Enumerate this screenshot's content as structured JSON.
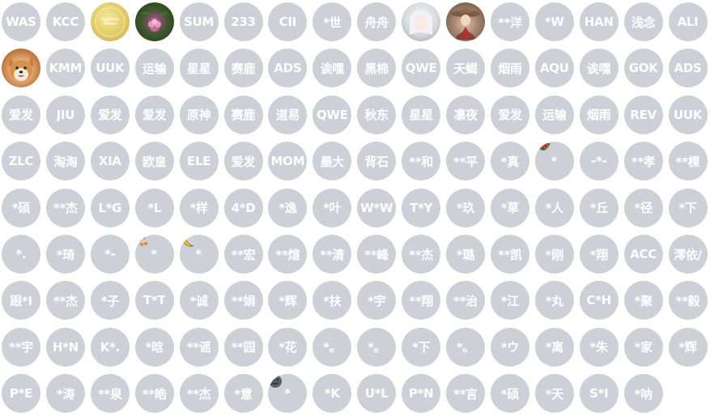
{
  "avatar_colors": {
    "placeholder_bg": "#cdd0d6",
    "text": "#ffffff"
  },
  "rows": [
    [
      {
        "label": "WAS"
      },
      {
        "label": "KCC"
      },
      {
        "label": "",
        "image": "gold-coin-avatar",
        "img_text": "G..."
      },
      {
        "label": "",
        "image": "pink-flower-avatar"
      },
      {
        "label": "SUM"
      },
      {
        "label": "233"
      },
      {
        "label": "CII"
      },
      {
        "label": "*世"
      },
      {
        "label": "舟舟"
      },
      {
        "label": "",
        "image": "anime-character-avatar"
      },
      {
        "label": "",
        "image": "cowboy-character-avatar"
      },
      {
        "label": "**洋"
      },
      {
        "label": "*W"
      },
      {
        "label": "HAN"
      },
      {
        "label": "浅念"
      },
      {
        "label": "ALI"
      }
    ],
    [
      {
        "label": "",
        "image": "shiba-dog-avatar"
      },
      {
        "label": "KMM"
      },
      {
        "label": "UUK"
      },
      {
        "label": "运输"
      },
      {
        "label": "星星"
      },
      {
        "label": "赛鹿"
      },
      {
        "label": "ADS"
      },
      {
        "label": "诶嘿"
      },
      {
        "label": "黑棉"
      },
      {
        "label": "QWE"
      },
      {
        "label": "天蝎"
      },
      {
        "label": "烟雨"
      },
      {
        "label": "AQU"
      },
      {
        "label": "诶嘿"
      },
      {
        "label": "GOK"
      },
      {
        "label": "ADS"
      }
    ],
    [
      {
        "label": "爱发"
      },
      {
        "label": "JIU"
      },
      {
        "label": "爱发"
      },
      {
        "label": "爱发"
      },
      {
        "label": "原神"
      },
      {
        "label": "赛鹿"
      },
      {
        "label": "道易"
      },
      {
        "label": "QWE"
      },
      {
        "label": "秋东"
      },
      {
        "label": "星星"
      },
      {
        "label": "凛夜"
      },
      {
        "label": "爱发"
      },
      {
        "label": "运输"
      },
      {
        "label": "烟雨"
      },
      {
        "label": "REV"
      },
      {
        "label": "UUK"
      }
    ],
    [
      {
        "label": "ZLC"
      },
      {
        "label": "淘淘"
      },
      {
        "label": "XIA"
      },
      {
        "label": "欧皇"
      },
      {
        "label": "ELE"
      },
      {
        "label": "爱发"
      },
      {
        "label": "MOM"
      },
      {
        "label": "墨大"
      },
      {
        "label": "背石"
      },
      {
        "label": "**和"
      },
      {
        "label": "**平"
      },
      {
        "label": "*真"
      },
      {
        "label": "*",
        "emoji": "watermelon-icon"
      },
      {
        "label": "-*-"
      },
      {
        "label": "**孝"
      },
      {
        "label": "**棵"
      }
    ],
    [
      {
        "label": "*硕"
      },
      {
        "label": "**杰"
      },
      {
        "label": "L*G"
      },
      {
        "label": "*L"
      },
      {
        "label": "*样"
      },
      {
        "label": "4*D"
      },
      {
        "label": "*逸"
      },
      {
        "label": "*叶"
      },
      {
        "label": "W*W"
      },
      {
        "label": "T*Y"
      },
      {
        "label": "*玖"
      },
      {
        "label": "*草"
      },
      {
        "label": "*人"
      },
      {
        "label": "*丘"
      },
      {
        "label": "*径"
      },
      {
        "label": "*下"
      }
    ],
    [
      {
        "label": "*."
      },
      {
        "label": "*琦"
      },
      {
        "label": "*-"
      },
      {
        "label": "*",
        "emoji": "paw-icon"
      },
      {
        "label": "*",
        "emoji": "banana-icon"
      },
      {
        "label": "**宏"
      },
      {
        "label": "**煊"
      },
      {
        "label": "**清"
      },
      {
        "label": "**峰"
      },
      {
        "label": "**杰"
      },
      {
        "label": "*璐"
      },
      {
        "label": "**凯"
      },
      {
        "label": "*刚"
      },
      {
        "label": "*翔"
      },
      {
        "label": "ACC"
      },
      {
        "label": "澪依/"
      }
    ],
    [
      {
        "label": "跟*I"
      },
      {
        "label": "**杰"
      },
      {
        "label": "*子"
      },
      {
        "label": "T*T"
      },
      {
        "label": "*诚"
      },
      {
        "label": "**娟"
      },
      {
        "label": "*辉"
      },
      {
        "label": "*扶"
      },
      {
        "label": "*宇"
      },
      {
        "label": "**翔"
      },
      {
        "label": "**治"
      },
      {
        "label": "*江"
      },
      {
        "label": "*丸"
      },
      {
        "label": "C*H"
      },
      {
        "label": "*聚"
      },
      {
        "label": "**毅"
      }
    ],
    [
      {
        "label": "**宇"
      },
      {
        "label": "H*N"
      },
      {
        "label": "K*."
      },
      {
        "label": "*晗"
      },
      {
        "label": "**谣"
      },
      {
        "label": "**园"
      },
      {
        "label": "*花"
      },
      {
        "label": "*。"
      },
      {
        "label": "*。"
      },
      {
        "label": "*下"
      },
      {
        "label": "*。"
      },
      {
        "label": "*ウ"
      },
      {
        "label": "*离"
      },
      {
        "label": "*朱"
      },
      {
        "label": "*家"
      },
      {
        "label": "*辉"
      }
    ],
    [
      {
        "label": "P*E"
      },
      {
        "label": "*涛"
      },
      {
        "label": "**泉"
      },
      {
        "label": "**皓"
      },
      {
        "label": "**杰"
      },
      {
        "label": "*意"
      },
      {
        "label": "*",
        "emoji": "smiley-face-icon"
      },
      {
        "label": "*K"
      },
      {
        "label": "U*L"
      },
      {
        "label": "P*N"
      },
      {
        "label": "**言"
      },
      {
        "label": "*硕"
      },
      {
        "label": "*天"
      },
      {
        "label": "S*I"
      },
      {
        "label": "*呐"
      }
    ]
  ]
}
